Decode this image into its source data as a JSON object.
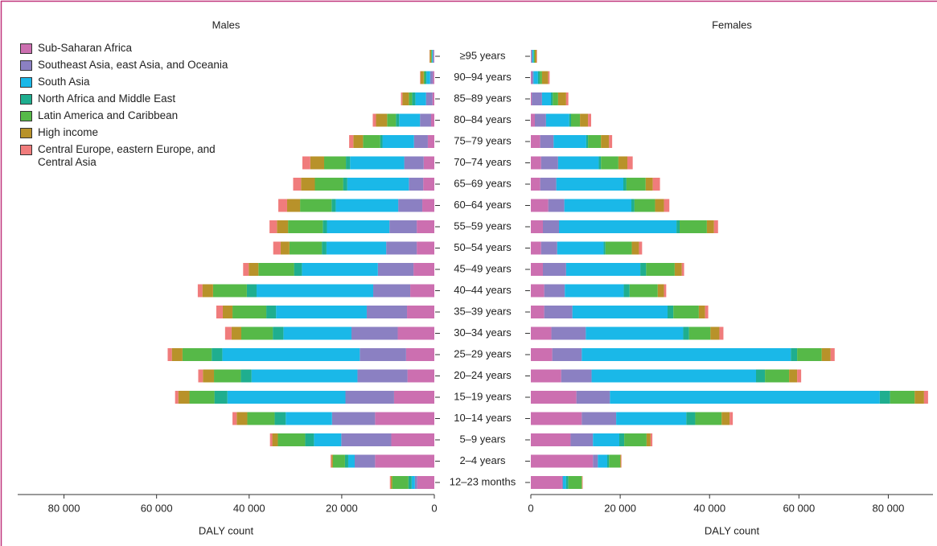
{
  "chart_data": {
    "type": "bar",
    "categories": [
      "≥95 years",
      "90–94 years",
      "85–89 years",
      "80–84 years",
      "75–79 years",
      "70–74 years",
      "65–69 years",
      "60–64 years",
      "55–59 years",
      "50–54 years",
      "45–49 years",
      "40–44 years",
      "35–39 years",
      "30–34 years",
      "25–29 years",
      "20–24 years",
      "15–19 years",
      "10–14 years",
      "5–9 years",
      "2–4 years",
      "12–23 months"
    ],
    "panels": [
      {
        "title": "Males",
        "xlabel": "DALY count",
        "xlim": [
          0,
          90000
        ],
        "xticks": [
          0,
          {
            "value": 20000,
            "label": "20 000"
          },
          {
            "value": 40000,
            "label": "40 000"
          },
          {
            "value": 60000,
            "label": "60 000"
          },
          {
            "value": 80000,
            "label": "80 000"
          }
        ]
      },
      {
        "title": "Females",
        "xlabel": "DALY count",
        "xlim": [
          0,
          90000
        ],
        "xticks": [
          0,
          {
            "value": 20000,
            "label": "20 000"
          },
          {
            "value": 40000,
            "label": "40 000"
          },
          {
            "value": 60000,
            "label": "60 000"
          },
          {
            "value": 80000,
            "label": "80 000"
          }
        ]
      }
    ],
    "series": [
      {
        "name": "Sub-Saharan Africa",
        "color": "#cc6fb0",
        "values": [
          [
            100,
            300,
            400,
            700,
            1400,
            2300,
            2400,
            2600,
            3800,
            3800,
            4500,
            5200,
            5900,
            7900,
            6100,
            5800,
            8700,
            12800,
            9300,
            12800,
            3700
          ],
          [
            100,
            200,
            200,
            900,
            2100,
            2300,
            2100,
            3900,
            2700,
            2300,
            2700,
            3000,
            3000,
            4600,
            4800,
            6800,
            10200,
            11400,
            8900,
            13900,
            7000
          ]
        ]
      },
      {
        "name": "Southeast Asia, east Asia, and Oceania",
        "color": "#8b80c2",
        "values": [
          [
            200,
            600,
            1400,
            2400,
            3000,
            4200,
            3100,
            5200,
            5900,
            6600,
            7700,
            8000,
            8700,
            10000,
            10000,
            10800,
            10500,
            9300,
            10800,
            4400,
            500
          ],
          [
            200,
            400,
            2300,
            2500,
            3000,
            3800,
            3600,
            3600,
            3600,
            3600,
            5200,
            4600,
            6300,
            7700,
            6600,
            6800,
            7500,
            7700,
            5000,
            1100,
            200
          ]
        ]
      },
      {
        "name": "South Asia",
        "color": "#1ab8e8",
        "values": [
          [
            200,
            800,
            2300,
            4500,
            6800,
            11700,
            13300,
            13500,
            13500,
            12900,
            16400,
            25200,
            19600,
            14700,
            29700,
            22900,
            25500,
            10000,
            5900,
            1400,
            700
          ],
          [
            300,
            1000,
            2000,
            5200,
            7300,
            9100,
            15000,
            15000,
            26300,
            10400,
            16600,
            13200,
            21300,
            21800,
            46800,
            36800,
            60400,
            15700,
            5900,
            2100,
            700
          ]
        ]
      },
      {
        "name": "North Africa and Middle East",
        "color": "#1fae8f",
        "values": [
          [
            50,
            300,
            700,
            700,
            500,
            900,
            900,
            900,
            900,
            1000,
            1700,
            2100,
            2100,
            2300,
            2300,
            2300,
            2800,
            2400,
            1900,
            700,
            700
          ],
          [
            100,
            400,
            400,
            400,
            400,
            500,
            700,
            700,
            700,
            400,
            1300,
            1300,
            1300,
            1300,
            1400,
            2000,
            2300,
            2000,
            1100,
            400,
            500
          ]
        ]
      },
      {
        "name": "Latin America and Caribbean",
        "color": "#56b948",
        "values": [
          [
            150,
            300,
            700,
            1900,
            3700,
            4700,
            6100,
            6800,
            7500,
            7000,
            7700,
            7300,
            7300,
            6800,
            6300,
            5800,
            5400,
            5900,
            5900,
            2600,
            3500
          ],
          [
            200,
            500,
            1200,
            2000,
            2900,
            3900,
            4300,
            4600,
            6100,
            5900,
            6400,
            6300,
            5700,
            4800,
            5500,
            5400,
            5500,
            5900,
            5000,
            2500,
            3000
          ]
        ]
      },
      {
        "name": "High income",
        "color": "#b8922a",
        "values": [
          [
            300,
            700,
            1400,
            2400,
            2100,
            3000,
            3000,
            2800,
            2400,
            1900,
            2100,
            2300,
            2100,
            2100,
            2300,
            2400,
            2400,
            2300,
            1200,
            300,
            300
          ],
          [
            400,
            1400,
            1800,
            1800,
            1800,
            2000,
            1600,
            2000,
            1600,
            1600,
            1600,
            1400,
            1400,
            2000,
            2000,
            1800,
            2100,
            1800,
            900,
            200,
            100
          ]
        ]
      },
      {
        "name": "Central Europe, eastern Europe, and Central Asia",
        "color": "#f07c7c",
        "values": [
          [
            50,
            100,
            300,
            700,
            900,
            1700,
            1700,
            1900,
            1600,
            1600,
            1200,
            1000,
            1400,
            1400,
            900,
            1000,
            700,
            900,
            500,
            200,
            200
          ],
          [
            100,
            300,
            500,
            700,
            700,
            1200,
            1600,
            1200,
            900,
            700,
            500,
            500,
            700,
            900,
            900,
            900,
            900,
            700,
            400,
            100,
            100
          ]
        ]
      }
    ]
  }
}
